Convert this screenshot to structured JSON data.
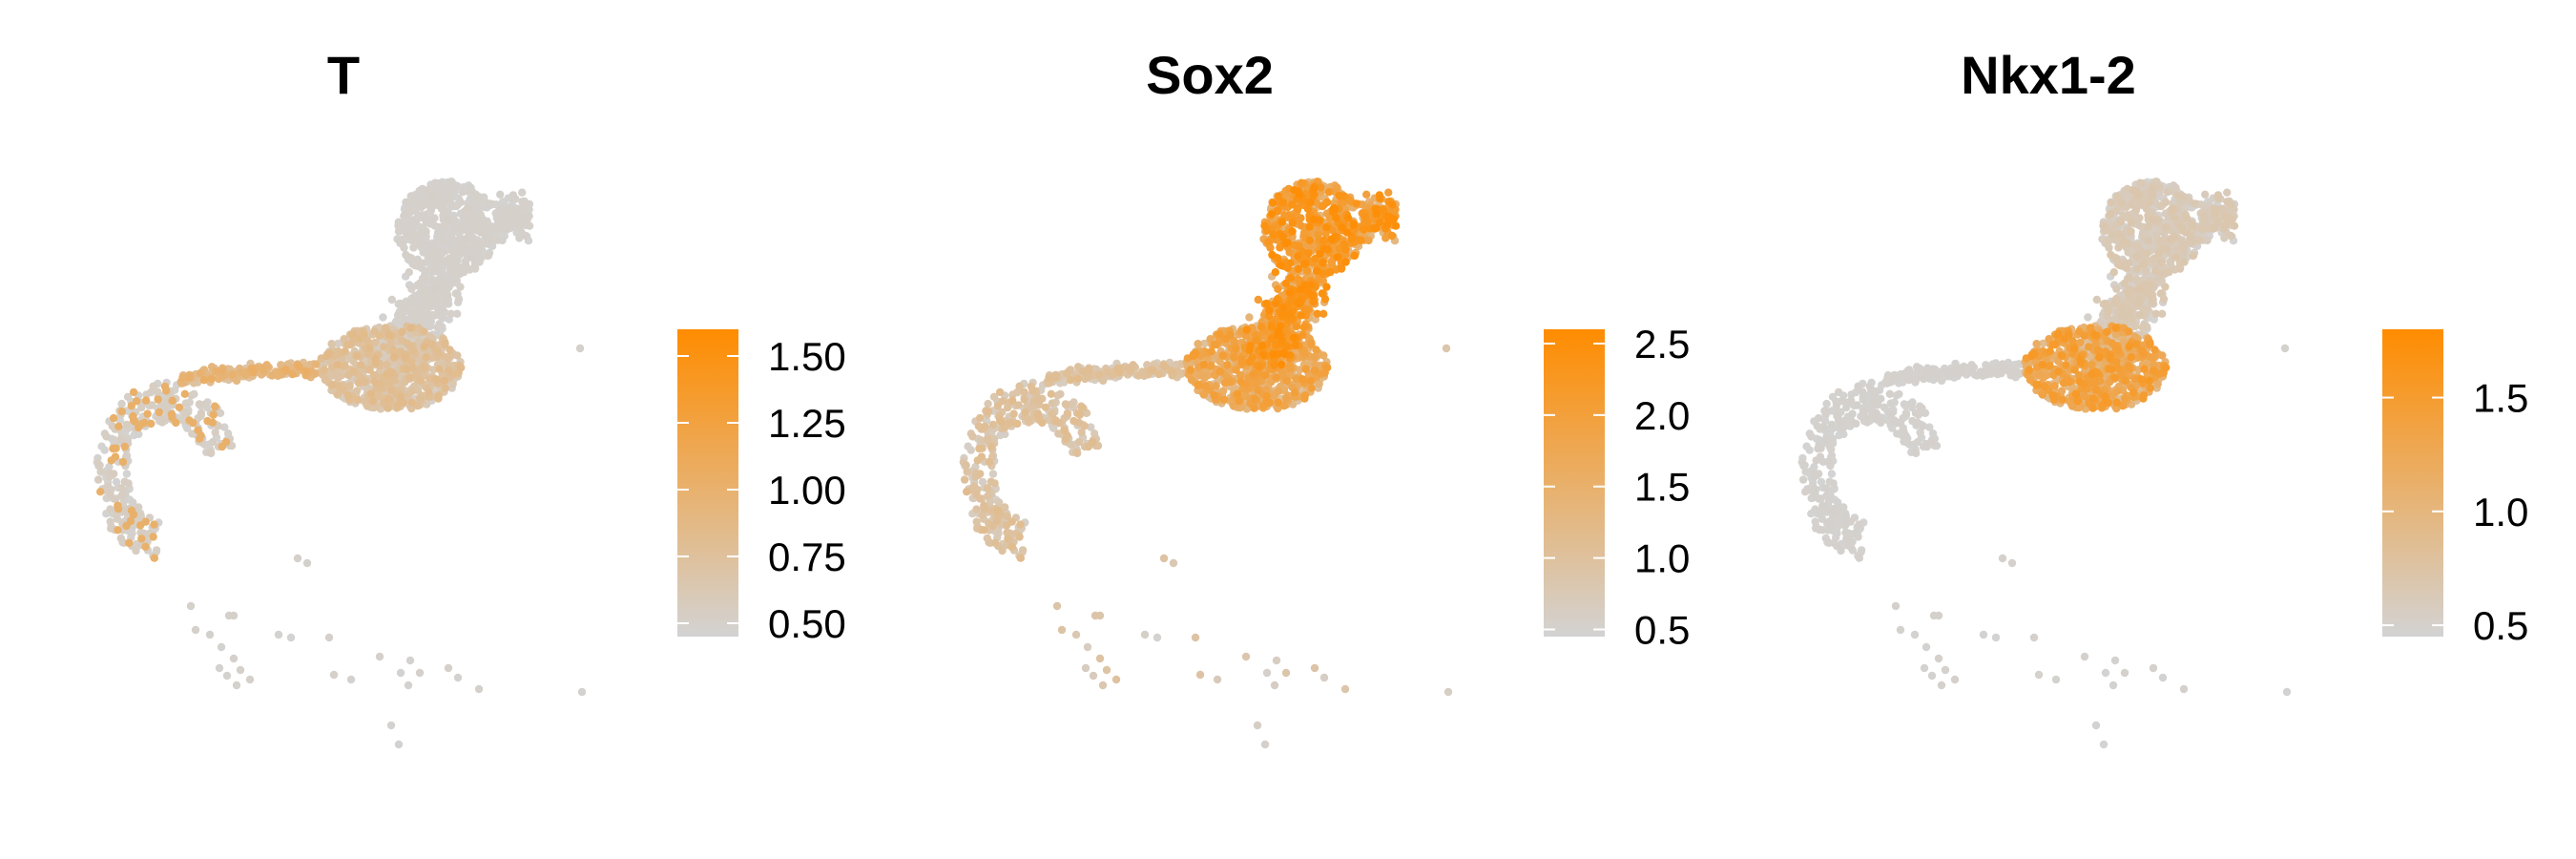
{
  "chart_data": [
    {
      "type": "scatter",
      "title": "T",
      "colorscale": {
        "low": "#d3d3d3",
        "high": "#ff8c00"
      },
      "legend_ticks": [
        "1.50",
        "1.25",
        "1.00",
        "0.75",
        "0.50"
      ],
      "legend_tick_values": [
        1.5,
        1.25,
        1.0,
        0.75,
        0.5
      ],
      "range": [
        0.45,
        1.6
      ],
      "high_region": "bridge",
      "base_level": 0.05,
      "region_level": 0.35,
      "grid": false,
      "legend_placement": "right"
    },
    {
      "type": "scatter",
      "title": "Sox2",
      "colorscale": {
        "low": "#d3d3d3",
        "high": "#ff8c00"
      },
      "legend_ticks": [
        "2.5",
        "2.0",
        "1.5",
        "1.0",
        "0.5"
      ],
      "legend_tick_values": [
        2.5,
        2.0,
        1.5,
        1.0,
        0.5
      ],
      "range": [
        0.45,
        2.6
      ],
      "high_region": "upper-arm",
      "base_level": 0.25,
      "region_level": 0.65,
      "grid": false,
      "legend_placement": "right"
    },
    {
      "type": "scatter",
      "title": "Nkx1-2",
      "colorscale": {
        "low": "#d3d3d3",
        "high": "#ff8c00"
      },
      "legend_ticks": [
        "1.5",
        "1.0",
        "0.5"
      ],
      "legend_tick_values": [
        1.5,
        1.0,
        0.5
      ],
      "range": [
        0.45,
        1.8
      ],
      "high_region": "middle",
      "base_level": 0.04,
      "region_level": 0.55,
      "grid": false,
      "legend_placement": "right"
    }
  ]
}
